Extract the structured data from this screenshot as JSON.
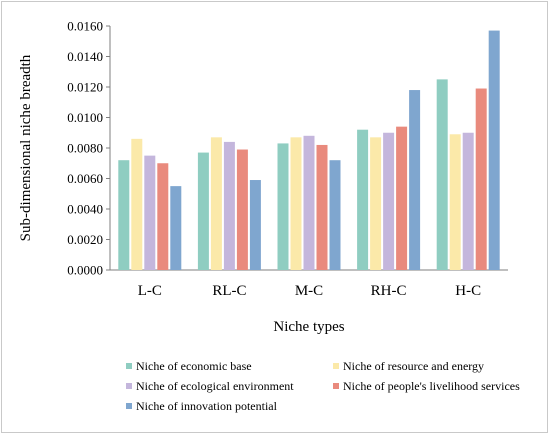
{
  "chart_data": {
    "type": "bar",
    "ylabel": "Sub-dimensional niche breadth",
    "xlabel": "Niche types",
    "categories": [
      "L-C",
      "RL-C",
      "M-C",
      "RH-C",
      "H-C"
    ],
    "ylim": [
      0,
      0.016
    ],
    "yticks": [
      "0.0000",
      "0.0020",
      "0.0040",
      "0.0060",
      "0.0080",
      "0.0100",
      "0.0120",
      "0.0140",
      "0.0160"
    ],
    "grid": false,
    "legend_position": "bottom",
    "series": [
      {
        "name": "Niche of economic base",
        "color": "#8fcdc1",
        "values": [
          0.0072,
          0.0077,
          0.0083,
          0.0092,
          0.0125
        ]
      },
      {
        "name": "Niche of resource and energy",
        "color": "#fbe9a9",
        "values": [
          0.0086,
          0.0087,
          0.0087,
          0.0087,
          0.0089
        ]
      },
      {
        "name": "Niche of ecological environment",
        "color": "#c4b6dc",
        "values": [
          0.0075,
          0.0084,
          0.0088,
          0.009,
          0.009
        ]
      },
      {
        "name": "Niche of people's livelihood services",
        "color": "#e98a7d",
        "values": [
          0.007,
          0.0079,
          0.0082,
          0.0094,
          0.0119
        ]
      },
      {
        "name": "Niche of  innovation potential",
        "color": "#7fa6cf",
        "values": [
          0.0055,
          0.0059,
          0.0072,
          0.0118,
          0.0157
        ]
      }
    ]
  }
}
